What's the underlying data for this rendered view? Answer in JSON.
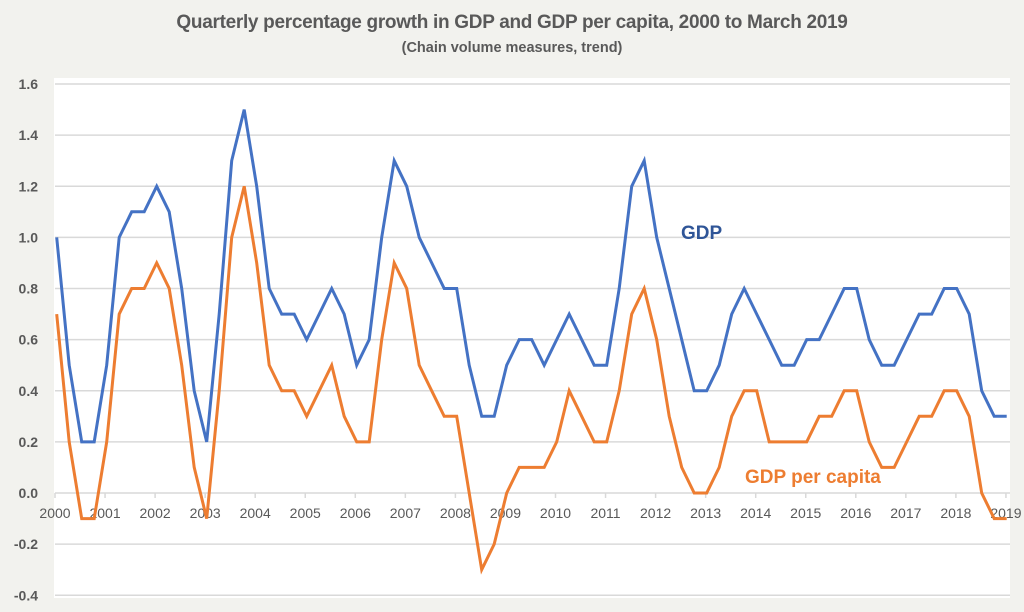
{
  "chart_data": {
    "type": "line",
    "title": "Quarterly percentage growth in GDP and GDP per capita, 2000 to March 2019",
    "subtitle": "(Chain volume measures, trend)",
    "xlabel": "",
    "ylabel": "",
    "ylim": [
      -0.4,
      1.6
    ],
    "yticks": [
      "1.6",
      "1.4",
      "1.2",
      "1.0",
      "0.8",
      "0.6",
      "0.4",
      "0.2",
      "0.0",
      "-0.2",
      "-0.4"
    ],
    "ytick_values": [
      1.6,
      1.4,
      1.2,
      1.0,
      0.8,
      0.6,
      0.4,
      0.2,
      0.0,
      -0.2,
      -0.4
    ],
    "xticks": [
      "2000",
      "2001",
      "2002",
      "2003",
      "2004",
      "2005",
      "2006",
      "2007",
      "2008",
      "2009",
      "2010",
      "2011",
      "2012",
      "2013",
      "2014",
      "2015",
      "2016",
      "2017",
      "2018",
      "2019"
    ],
    "x_start": "2000 Q1",
    "x_end": "2019 Q1",
    "x_frequency": "quarterly",
    "grid": true,
    "legend": "inline labels",
    "series": [
      {
        "name": "GDP",
        "color": "#4472c4",
        "label_color": "#2f5597",
        "values": [
          1.0,
          0.5,
          0.2,
          0.2,
          0.5,
          1.0,
          1.1,
          1.1,
          1.2,
          1.1,
          0.8,
          0.4,
          0.2,
          0.7,
          1.3,
          1.5,
          1.2,
          0.8,
          0.7,
          0.7,
          0.6,
          0.7,
          0.8,
          0.7,
          0.5,
          0.6,
          1.0,
          1.3,
          1.2,
          1.0,
          0.9,
          0.8,
          0.8,
          0.5,
          0.3,
          0.3,
          0.5,
          0.6,
          0.6,
          0.5,
          0.6,
          0.7,
          0.6,
          0.5,
          0.5,
          0.8,
          1.2,
          1.3,
          1.0,
          0.8,
          0.6,
          0.4,
          0.4,
          0.5,
          0.7,
          0.8,
          0.7,
          0.6,
          0.5,
          0.5,
          0.6,
          0.6,
          0.7,
          0.8,
          0.8,
          0.6,
          0.5,
          0.5,
          0.6,
          0.7,
          0.7,
          0.8,
          0.8,
          0.7,
          0.4,
          0.3,
          0.3
        ]
      },
      {
        "name": "GDP per capita",
        "color": "#ed7d31",
        "label_color": "#ed7d31",
        "values": [
          0.7,
          0.2,
          -0.1,
          -0.1,
          0.2,
          0.7,
          0.8,
          0.8,
          0.9,
          0.8,
          0.5,
          0.1,
          -0.1,
          0.4,
          1.0,
          1.2,
          0.9,
          0.5,
          0.4,
          0.4,
          0.3,
          0.4,
          0.5,
          0.3,
          0.2,
          0.2,
          0.6,
          0.9,
          0.8,
          0.5,
          0.4,
          0.3,
          0.3,
          0.0,
          -0.3,
          -0.2,
          0.0,
          0.1,
          0.1,
          0.1,
          0.2,
          0.4,
          0.3,
          0.2,
          0.2,
          0.4,
          0.7,
          0.8,
          0.6,
          0.3,
          0.1,
          0.0,
          0.0,
          0.1,
          0.3,
          0.4,
          0.4,
          0.2,
          0.2,
          0.2,
          0.2,
          0.3,
          0.3,
          0.4,
          0.4,
          0.2,
          0.1,
          0.1,
          0.2,
          0.3,
          0.3,
          0.4,
          0.4,
          0.3,
          0.0,
          -0.1,
          -0.1
        ]
      }
    ]
  }
}
